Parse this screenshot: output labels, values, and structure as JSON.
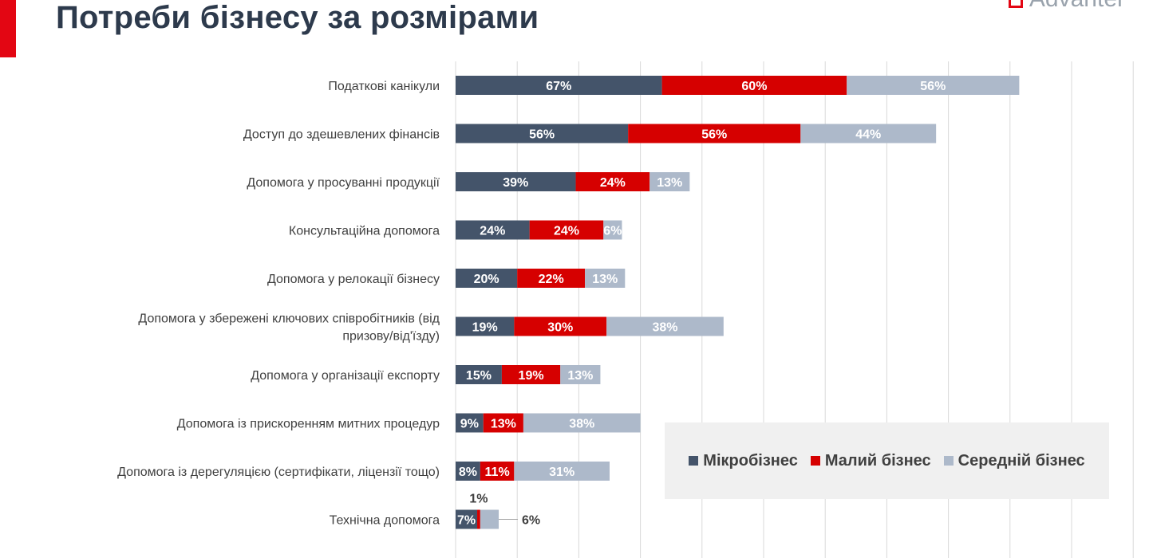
{
  "header": {
    "title": "Потреби бізнесу за розмірами",
    "logo_text": "Advanter"
  },
  "colors": {
    "micro": "#44546a",
    "small": "#d60000",
    "medium": "#adb9ca",
    "accent": "#e30613"
  },
  "chart_data": {
    "type": "bar",
    "orientation": "horizontal",
    "stacked": true,
    "title": "",
    "xlabel": "",
    "ylabel": "",
    "grid": true,
    "legend_position": "right",
    "categories": [
      "Податкові канікули",
      "Доступ до здешевлених фінансів",
      "Допомога у просуванні продукції",
      "Консультаційна допомога",
      "Допомога у релокації бізнесу",
      "Допомога у збережені ключових співробітників (від призову/від'їзду)",
      "Допомога у організації експорту",
      "Допомога із прискоренням митних процедур",
      "Допомога із дерегуляцією (сертифікати, ліцензії тощо)",
      "Технічна допомога"
    ],
    "series": [
      {
        "name": "Мікробізнес",
        "values": [
          67,
          56,
          39,
          24,
          20,
          19,
          15,
          9,
          8,
          7
        ]
      },
      {
        "name": "Малий бізнес",
        "values": [
          60,
          56,
          24,
          24,
          22,
          30,
          19,
          13,
          11,
          1
        ]
      },
      {
        "name": "Середній бізнес",
        "values": [
          56,
          44,
          13,
          6,
          13,
          38,
          13,
          38,
          31,
          6
        ]
      }
    ],
    "data_labels": [
      [
        "67%",
        "60%",
        "56%"
      ],
      [
        "56%",
        "56%",
        "44%"
      ],
      [
        "39%",
        "24%",
        "13%"
      ],
      [
        "24%",
        "24%",
        "6%"
      ],
      [
        "20%",
        "22%",
        "13%"
      ],
      [
        "19%",
        "30%",
        "38%"
      ],
      [
        "15%",
        "19%",
        "13%"
      ],
      [
        "9%",
        "13%",
        "38%"
      ],
      [
        "8%",
        "11%",
        "31%"
      ],
      [
        "7%",
        "1%",
        "6%"
      ]
    ],
    "category_lines": [
      [
        "Податкові канікули"
      ],
      [
        "Доступ до здешевлених фінансів"
      ],
      [
        "Допомога у просуванні продукції"
      ],
      [
        "Консультаційна допомога"
      ],
      [
        "Допомога у релокації бізнесу"
      ],
      [
        "Допомога у збережені ключових співробітників (від",
        "призову/від'їзду)"
      ],
      [
        "Допомога у організації експорту"
      ],
      [
        "Допомога із прискоренням митних процедур"
      ],
      [
        "Допомога із дерегуляцією (сертифікати, ліцензії тощо)"
      ],
      [
        "Технічна допомога"
      ]
    ],
    "xlim": [
      0,
      225
    ]
  }
}
